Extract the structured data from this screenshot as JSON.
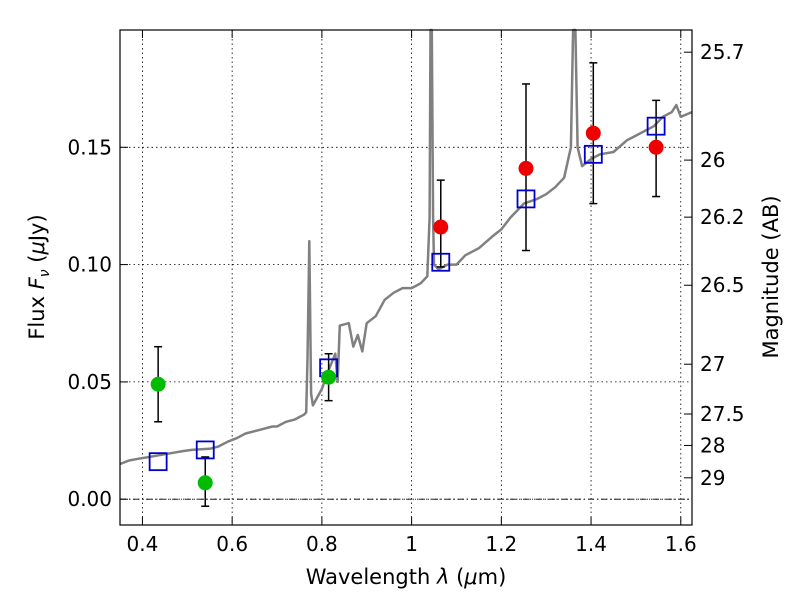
{
  "chart_data": {
    "type": "scatter",
    "xlabel_parts": [
      "Wavelength ",
      "λ",
      " (",
      "μ",
      "m)"
    ],
    "ylabel_parts": [
      "Flux ",
      "F",
      "ν",
      " (",
      "μ",
      "Jy)"
    ],
    "y2label": "Magnitude (AB)",
    "xlim": [
      0.35,
      1.625
    ],
    "ylim": [
      -0.011,
      0.2
    ],
    "grid": true,
    "x_ticks": [
      0.4,
      0.6,
      0.8,
      1.0,
      1.2,
      1.4,
      1.6
    ],
    "x_tick_labels": [
      "0.4",
      "0.6",
      "0.8",
      "1",
      "1.2",
      "1.4",
      "1.6"
    ],
    "y_ticks": [
      0.0,
      0.05,
      0.1,
      0.15
    ],
    "y_tick_labels": [
      "0.00",
      "0.05",
      "0.10",
      "0.15"
    ],
    "mag_ticks": [
      25.7,
      26,
      26.2,
      26.5,
      27,
      27.5,
      28,
      29
    ],
    "mag_tick_labels": [
      "25.7",
      "26",
      "26.2",
      "26.5",
      "27",
      "27.5",
      "28",
      "29"
    ],
    "zero_line": 0.0,
    "colors": {
      "model": "#808080",
      "model_points": "#0000cc",
      "detections": "#ee0000",
      "non_detections": "#00bb00",
      "errorbars": "#000000"
    },
    "model_spectrum": [
      [
        0.35,
        0.015
      ],
      [
        0.37,
        0.0165
      ],
      [
        0.39,
        0.0172
      ],
      [
        0.41,
        0.0178
      ],
      [
        0.43,
        0.0185
      ],
      [
        0.45,
        0.0192
      ],
      [
        0.47,
        0.0198
      ],
      [
        0.49,
        0.0205
      ],
      [
        0.51,
        0.021
      ],
      [
        0.53,
        0.0213
      ],
      [
        0.55,
        0.0215
      ],
      [
        0.57,
        0.0225
      ],
      [
        0.59,
        0.0245
      ],
      [
        0.61,
        0.026
      ],
      [
        0.63,
        0.028
      ],
      [
        0.65,
        0.029
      ],
      [
        0.67,
        0.03
      ],
      [
        0.69,
        0.031
      ],
      [
        0.7,
        0.031
      ],
      [
        0.72,
        0.033
      ],
      [
        0.74,
        0.034
      ],
      [
        0.76,
        0.036
      ],
      [
        0.765,
        0.037
      ],
      [
        0.768,
        0.06
      ],
      [
        0.772,
        0.11
      ],
      [
        0.776,
        0.045
      ],
      [
        0.78,
        0.04
      ],
      [
        0.8,
        0.047
      ],
      [
        0.815,
        0.055
      ],
      [
        0.83,
        0.062
      ],
      [
        0.835,
        0.05
      ],
      [
        0.84,
        0.074
      ],
      [
        0.86,
        0.075
      ],
      [
        0.87,
        0.065
      ],
      [
        0.88,
        0.07
      ],
      [
        0.89,
        0.063
      ],
      [
        0.9,
        0.075
      ],
      [
        0.92,
        0.078
      ],
      [
        0.94,
        0.085
      ],
      [
        0.96,
        0.088
      ],
      [
        0.98,
        0.09
      ],
      [
        1.0,
        0.09
      ],
      [
        1.02,
        0.092
      ],
      [
        1.035,
        0.095
      ],
      [
        1.04,
        0.12
      ],
      [
        1.042,
        0.2
      ],
      [
        1.045,
        0.2
      ],
      [
        1.048,
        0.12
      ],
      [
        1.05,
        0.1
      ],
      [
        1.06,
        0.098
      ],
      [
        1.08,
        0.1
      ],
      [
        1.1,
        0.1
      ],
      [
        1.12,
        0.104
      ],
      [
        1.15,
        0.107
      ],
      [
        1.18,
        0.112
      ],
      [
        1.2,
        0.115
      ],
      [
        1.22,
        0.12
      ],
      [
        1.25,
        0.126
      ],
      [
        1.28,
        0.128
      ],
      [
        1.3,
        0.13
      ],
      [
        1.32,
        0.133
      ],
      [
        1.34,
        0.137
      ],
      [
        1.355,
        0.15
      ],
      [
        1.36,
        0.2
      ],
      [
        1.365,
        0.2
      ],
      [
        1.37,
        0.15
      ],
      [
        1.38,
        0.142
      ],
      [
        1.4,
        0.145
      ],
      [
        1.42,
        0.147
      ],
      [
        1.45,
        0.148
      ],
      [
        1.48,
        0.153
      ],
      [
        1.5,
        0.155
      ],
      [
        1.52,
        0.157
      ],
      [
        1.54,
        0.159
      ],
      [
        1.56,
        0.163
      ],
      [
        1.58,
        0.165
      ],
      [
        1.59,
        0.168
      ],
      [
        1.6,
        0.163
      ],
      [
        1.625,
        0.165
      ]
    ],
    "model_points": [
      [
        0.435,
        0.016
      ],
      [
        0.54,
        0.021
      ],
      [
        0.815,
        0.056
      ],
      [
        1.065,
        0.101
      ],
      [
        1.255,
        0.128
      ],
      [
        1.405,
        0.147
      ],
      [
        1.545,
        0.159
      ]
    ],
    "detections": [
      {
        "x": 1.065,
        "y": 0.116,
        "err_low": null,
        "err_high": null
      },
      {
        "x": 1.255,
        "y": 0.141,
        "err_low": 0.106,
        "err_high": 0.177
      },
      {
        "x": 1.405,
        "y": 0.156,
        "err_low": 0.126,
        "err_high": 0.186
      },
      {
        "x": 1.545,
        "y": 0.15,
        "err_low": 0.129,
        "err_high": 0.17
      }
    ],
    "non_detections": [
      {
        "x": 0.435,
        "y": 0.049,
        "err_low": 0.033,
        "err_high": 0.065
      },
      {
        "x": 0.54,
        "y": 0.007,
        "err_low": -0.003,
        "err_high": 0.018
      },
      {
        "x": 0.815,
        "y": 0.052,
        "err_low": 0.042,
        "err_high": 0.062
      }
    ],
    "extra_errorbars": [
      {
        "x": 1.065,
        "err_low": 0.099,
        "err_high": 0.136
      }
    ]
  }
}
